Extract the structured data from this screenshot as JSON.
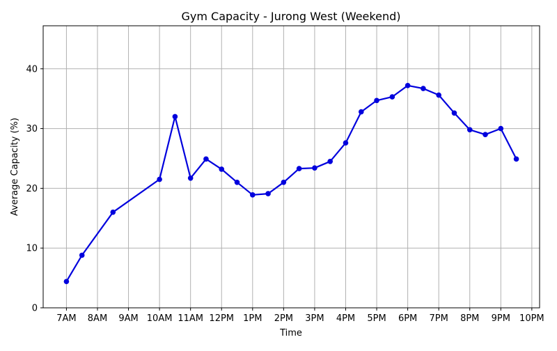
{
  "chart_data": {
    "type": "line",
    "title": "Gym Capacity - Jurong West (Weekend)",
    "xlabel": "Time",
    "ylabel": "Average Capacity (%)",
    "x_ticks": [
      "7AM",
      "8AM",
      "9AM",
      "10AM",
      "11AM",
      "12PM",
      "1PM",
      "2PM",
      "3PM",
      "4PM",
      "5PM",
      "6PM",
      "7PM",
      "8PM",
      "9PM",
      "10PM"
    ],
    "x_tick_hours": [
      7,
      8,
      9,
      10,
      11,
      12,
      13,
      14,
      15,
      16,
      17,
      18,
      19,
      20,
      21,
      22
    ],
    "y_ticks": [
      0,
      10,
      20,
      30,
      40
    ],
    "xlim": [
      6.25,
      22.25
    ],
    "ylim": [
      0,
      47.2
    ],
    "grid": true,
    "legend": "none",
    "line_color": "#0000dd",
    "series": [
      {
        "x": [
          7.0,
          7.5,
          8.5,
          10.0,
          10.5,
          11.0,
          11.5,
          12.0,
          12.5,
          13.0,
          13.5,
          14.0,
          14.5,
          15.0,
          15.5,
          16.0,
          16.5,
          17.0,
          17.5,
          18.0,
          18.5,
          19.0,
          19.5,
          20.0,
          20.5,
          21.0,
          21.5
        ],
        "values": [
          4.4,
          8.8,
          16.0,
          21.5,
          32.0,
          21.7,
          24.9,
          23.2,
          21.0,
          18.9,
          19.1,
          21.0,
          23.3,
          23.4,
          24.5,
          27.6,
          32.8,
          34.7,
          35.3,
          37.2,
          36.7,
          35.6,
          32.6,
          29.8,
          29.0,
          30.0,
          24.9
        ]
      }
    ]
  }
}
